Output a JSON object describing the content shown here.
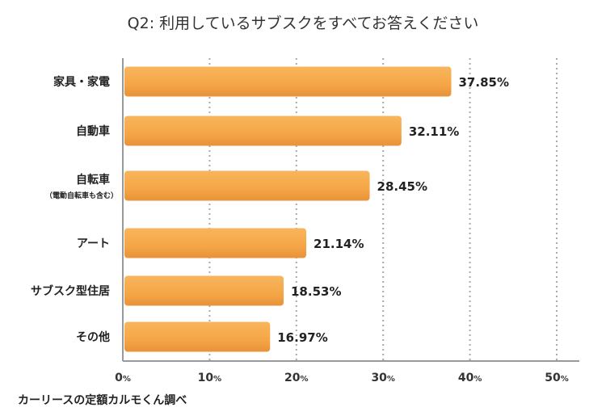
{
  "chart_data": {
    "type": "bar",
    "orientation": "horizontal",
    "title": "Q2: 利用しているサブスクをすべてお答えください",
    "categories": [
      "家具・家電",
      "自動車",
      "自転車",
      "アート",
      "サブスク型住居",
      "その他"
    ],
    "category_sublabels": [
      "",
      "",
      "（電動自転車も含む）",
      "",
      "",
      ""
    ],
    "values": [
      37.85,
      32.11,
      28.45,
      21.14,
      18.53,
      16.97
    ],
    "value_labels": [
      "37.85%",
      "32.11%",
      "28.45%",
      "21.14%",
      "18.53%",
      "16.97%"
    ],
    "xlim": [
      0,
      50
    ],
    "xticks": [
      0,
      10,
      20,
      30,
      40,
      50
    ],
    "xtick_suffix": "%",
    "grid": "vertical dotted",
    "bar_color": "#f5a646",
    "xlabel": "",
    "ylabel": ""
  },
  "footer": {
    "source": "カーリースの定額カルモくん調べ"
  }
}
